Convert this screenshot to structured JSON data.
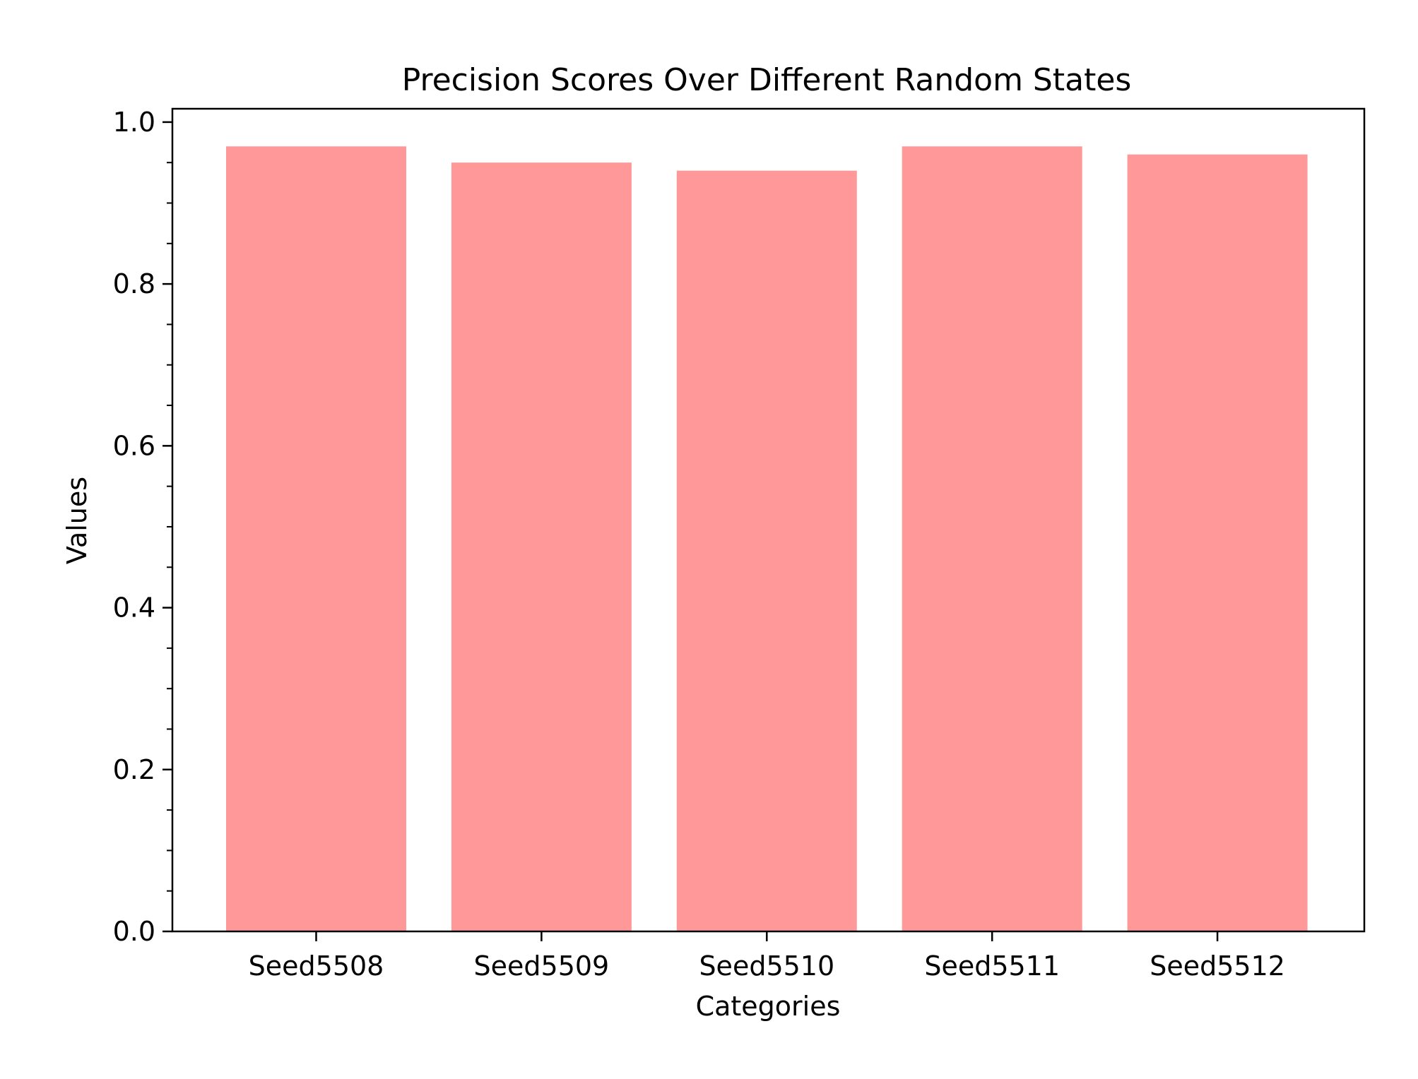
{
  "chart_data": {
    "type": "bar",
    "title": "Precision Scores Over Different Random States",
    "xlabel": "Categories",
    "ylabel": "Values",
    "categories": [
      "Seed5508",
      "Seed5509",
      "Seed5510",
      "Seed5511",
      "Seed5512"
    ],
    "values": [
      0.97,
      0.95,
      0.94,
      0.97,
      0.96
    ],
    "ylim": [
      0,
      1.0165
    ],
    "yticks": [
      "0.0",
      "0.2",
      "0.4",
      "0.6",
      "0.8",
      "1.0"
    ],
    "bar_color": "#ff9999",
    "grid": false,
    "legend": "none"
  }
}
